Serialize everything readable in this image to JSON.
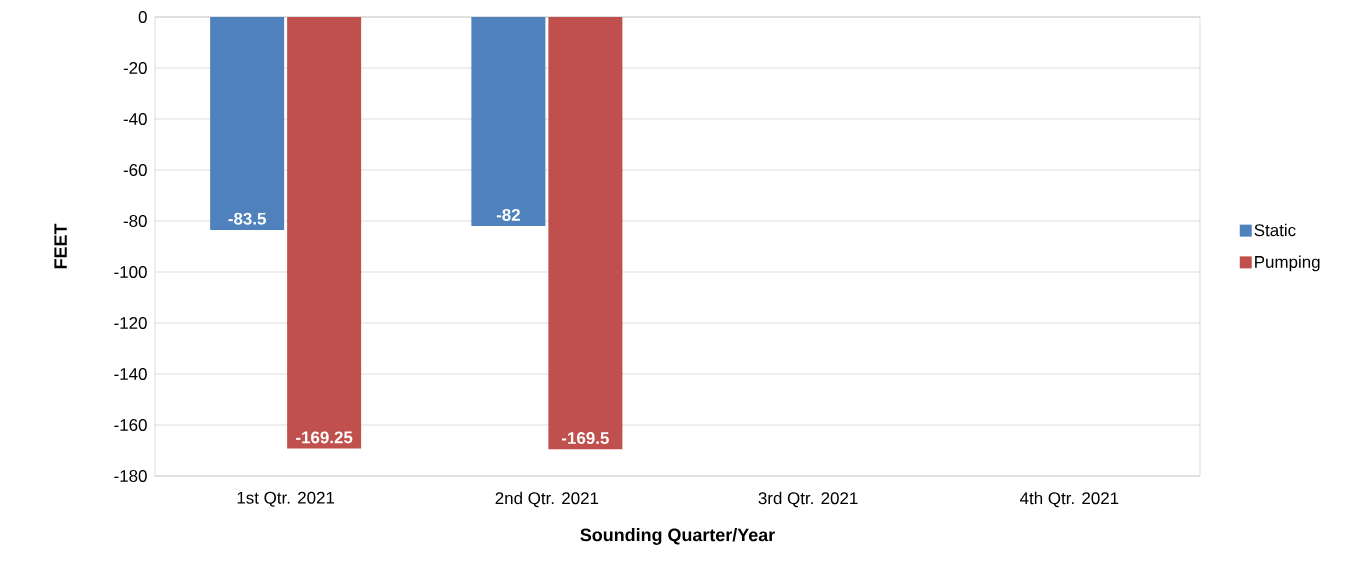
{
  "chart_data": {
    "type": "bar",
    "xlabel": "Sounding Quarter/Year",
    "ylabel": "FEET",
    "categories": [
      "1st Qtr. 2021",
      "2nd Qtr. 2021",
      "3rd Qtr. 2021",
      "4th Qtr. 2021"
    ],
    "series": [
      {
        "name": "Static",
        "color": "#4f81bd",
        "values": [
          -83.5,
          -82,
          null,
          null
        ]
      },
      {
        "name": "Pumping",
        "color": "#c0504d",
        "values": [
          -169.25,
          -169.5,
          null,
          null
        ]
      }
    ],
    "ylim": [
      -180,
      0
    ],
    "yticks": [
      -180,
      -160,
      -140,
      -120,
      -100,
      -80,
      -60,
      -40,
      -20,
      0
    ],
    "grid": "y",
    "legend": "right",
    "data_labels": true
  }
}
